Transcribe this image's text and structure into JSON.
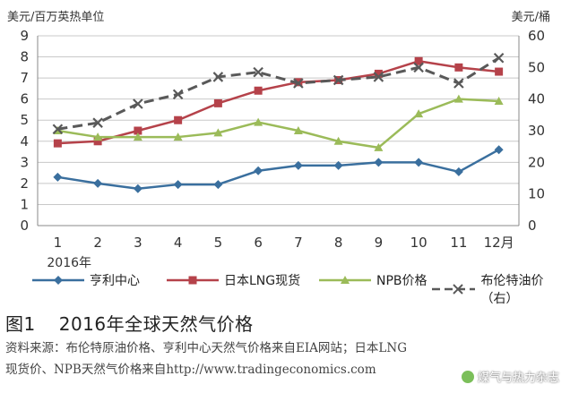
{
  "chart_data": {
    "type": "line",
    "title": "2016年全球天然气价格",
    "figure_label": "图1",
    "left_axis_label": "美元/百万英热单位",
    "right_axis_label": "美元/桶",
    "x_categories": [
      "1",
      "2",
      "3",
      "4",
      "5",
      "6",
      "7",
      "8",
      "9",
      "10",
      "11",
      "12月"
    ],
    "x_sublabel": "2016年",
    "ylim_left": [
      0,
      9
    ],
    "yticks_left": [
      0,
      1,
      2,
      3,
      4,
      5,
      6,
      7,
      8,
      9
    ],
    "ylim_right": [
      0,
      60
    ],
    "yticks_right": [
      0,
      10,
      20,
      30,
      40,
      50,
      60
    ],
    "series": [
      {
        "name": "亨利中心",
        "axis": "left",
        "color": "#3a6f9e",
        "marker": "diamond",
        "values": [
          2.3,
          2.0,
          1.75,
          1.95,
          1.95,
          2.6,
          2.85,
          2.85,
          3.0,
          3.0,
          2.55,
          3.6
        ]
      },
      {
        "name": "日本LNG现货",
        "axis": "left",
        "color": "#b5424a",
        "marker": "square",
        "values": [
          3.9,
          4.0,
          4.5,
          5.0,
          5.8,
          6.4,
          6.8,
          6.9,
          7.2,
          7.8,
          7.5,
          7.3
        ]
      },
      {
        "name": "NPB价格",
        "axis": "left",
        "color": "#9bbb59",
        "marker": "triangle",
        "values": [
          4.5,
          4.2,
          4.2,
          4.2,
          4.4,
          4.9,
          4.5,
          4.0,
          3.7,
          5.3,
          6.0,
          5.9
        ]
      },
      {
        "name": "布伦特油价（右）",
        "axis": "right",
        "color": "#595959",
        "marker": "x",
        "dashed": true,
        "values": [
          30.5,
          32.5,
          38.5,
          41.5,
          47,
          48.5,
          45,
          46,
          47,
          50,
          45,
          53
        ]
      }
    ]
  },
  "caption": {
    "figure_number": "图1",
    "title": "2016年全球天然气价格",
    "source_line1": "资料来源：布伦特原油价格、亨利中心天然气价格来自EIA网站；日本LNG",
    "source_line2": "现货价、NPB天然气价格来自http://www.tradingeconomics.com"
  },
  "watermark": "煤气与热力杂志"
}
